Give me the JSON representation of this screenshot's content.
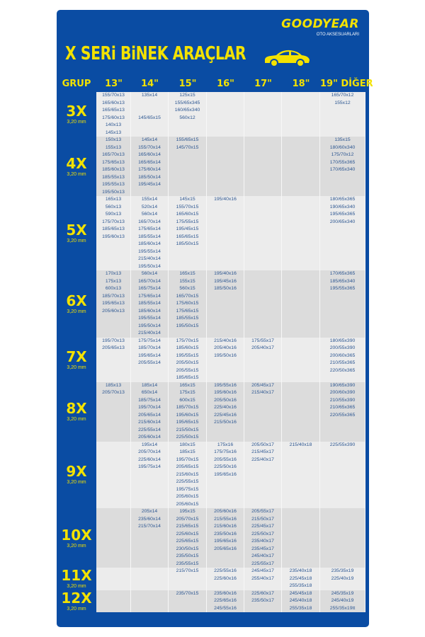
{
  "brand": {
    "logo": "GOODYEAR",
    "subtitle": "OTO AKSESUARLARI"
  },
  "title": "X SERi BiNEK ARAÇLAR",
  "icons": {
    "car": "car-icon"
  },
  "colors": {
    "panel": "#0a4ca3",
    "accent": "#f3e200",
    "text": "#2c5691"
  },
  "headers": [
    "GRUP",
    "13\"",
    "14\"",
    "15\"",
    "16\"",
    "17\"",
    "18\"",
    "19\" DİĞER"
  ],
  "rows": [
    {
      "group": "3X",
      "mm": "3,20 mm",
      "cells": [
        [
          "155/70x13",
          "165/60x13",
          "165/65x13",
          "175/60x13",
          "140x13",
          "145x13"
        ],
        [
          "135x14",
          "",
          "",
          "145/65x15"
        ],
        [
          "125x15",
          "155/65x345",
          "160/65x340",
          "560x12"
        ],
        [],
        [],
        [],
        [
          "165/70x12",
          "155x12"
        ]
      ]
    },
    {
      "group": "4X",
      "mm": "3,20 mm",
      "cells": [
        [
          "150x13",
          "155x13",
          "165/70x13",
          "175/65x13",
          "185/60x13",
          "185/55x13",
          "195/55x13",
          "195/50x13"
        ],
        [
          "145x14",
          "155/70x14",
          "165/60x14",
          "165/65x14",
          "175/60x14",
          "185/50x14",
          "195/45x14"
        ],
        [
          "155/65x15",
          "145/70x15"
        ],
        [],
        [],
        [],
        [
          "135x15",
          "180/60x340",
          "175/70x12",
          "170/55x365",
          "170/65x340"
        ]
      ]
    },
    {
      "group": "5X",
      "mm": "3,20 mm",
      "cells": [
        [
          "165x13",
          "560x13",
          "590x13",
          "175/70x13",
          "185/65x13",
          "195/60x13"
        ],
        [
          "155x14",
          "520x14",
          "560x14",
          "165/70x14",
          "175/65x14",
          "185/55x14",
          "185/60x14",
          "195/55x14",
          "215/40x14",
          "195/50x14"
        ],
        [
          "145x15",
          "155/70x15",
          "165/60x15",
          "175/55x15",
          "195/45x15",
          "165/65x15",
          "185/50x15"
        ],
        [
          "195/40x16"
        ],
        [],
        [],
        [
          "180/65x365",
          "190/65x340",
          "195/65x365",
          "200/65x340"
        ]
      ]
    },
    {
      "group": "6X",
      "mm": "3,20 mm",
      "cells": [
        [
          "170x13",
          "175x13",
          "600x13",
          "185/70x13",
          "195/65x13",
          "205/60x13"
        ],
        [
          "560x14",
          "165/70x14",
          "165/75x14",
          "175/65x14",
          "185/55x14",
          "185/60x14",
          "195/55x14",
          "195/50x14",
          "215/40x14"
        ],
        [
          "165x15",
          "155x15",
          "560x15",
          "165/70x15",
          "175/60x15",
          "175/65x15",
          "185/55x15",
          "195/50x15"
        ],
        [
          "195/40x16",
          "195/45x16",
          "185/50x16"
        ],
        [],
        [],
        [
          "170/65x365",
          "185/65x340",
          "195/55x365"
        ]
      ]
    },
    {
      "group": "7X",
      "mm": "3,20 mm",
      "cells": [
        [
          "195/70x13",
          "205/65x13"
        ],
        [
          "175/75x14",
          "185/70x14",
          "195/65x14",
          "205/55x14"
        ],
        [
          "175/70x15",
          "185/60x15",
          "195/55x15",
          "205/50x15",
          "205/55x15",
          "185/65x15"
        ],
        [
          "215/40x16",
          "205/40x16",
          "195/50x16"
        ],
        [
          "175/55x17",
          "205/40x17"
        ],
        [],
        [
          "180/65x390",
          "200/55x390",
          "200/60x365",
          "210/55x365",
          "220/50x365"
        ]
      ]
    },
    {
      "group": "8X",
      "mm": "3,20 mm",
      "cells": [
        [
          "185x13",
          "205/70x13"
        ],
        [
          "185x14",
          "650x14",
          "185/75x14",
          "195/70x14",
          "205/65x14",
          "215/60x14",
          "225/55x14",
          "205/60x14"
        ],
        [
          "165x15",
          "175x15",
          "600x15",
          "185/70x15",
          "195/60x15",
          "195/65x15",
          "215/50x15",
          "225/50x15"
        ],
        [
          "195/55x16",
          "195/60x16",
          "205/50x16",
          "225/40x16",
          "225/45x16",
          "215/50x16"
        ],
        [
          "205/45x17",
          "215/40x17"
        ],
        [],
        [
          "190/65x390",
          "200/60x390",
          "210/55x390",
          "210/65x365",
          "220/55x365"
        ]
      ]
    },
    {
      "group": "9X",
      "mm": "3,20 mm",
      "cells": [
        [],
        [
          "195x14",
          "205/70x14",
          "225/60x14",
          "195/75x14"
        ],
        [
          "180x15",
          "185x15",
          "195/70x15",
          "205/65x15",
          "215/60x15",
          "225/55x15",
          "195/75x15",
          "205/60x15",
          "205/60x15"
        ],
        [
          "175x16",
          "175/75x16",
          "205/55x16",
          "225/50x16",
          "195/65x16"
        ],
        [
          "205/50x17",
          "215/45x17",
          "225/40x17"
        ],
        [
          "215/40x18"
        ],
        [
          "225/55x390"
        ]
      ]
    },
    {
      "group": "10X",
      "mm": "3,20 mm",
      "cells": [
        [],
        [
          "205x14",
          "235/60x14",
          "215/70x14"
        ],
        [
          "195x15",
          "205/70x15",
          "215/65x15",
          "225/60x15",
          "225/65x15",
          "230/50x15",
          "235/50x15",
          "235/55x15"
        ],
        [
          "205/60x16",
          "215/55x16",
          "215/60x16",
          "235/50x16",
          "195/65x16",
          "205/65x16"
        ],
        [
          "205/55x17",
          "215/50x17",
          "225/45x17",
          "225/50x17",
          "235/40x17",
          "235/45x17",
          "245/40x17",
          "225/55x17"
        ],
        [],
        []
      ]
    },
    {
      "group": "11X",
      "mm": "3,20 mm",
      "cells": [
        [],
        [],
        [
          "215/70x15"
        ],
        [
          "225/55x16",
          "225/60x16"
        ],
        [
          "245/45x17",
          "255/40x17"
        ],
        [
          "235/40x18",
          "225/45x18",
          "255/35x18"
        ],
        [
          "235/35x19",
          "225/40x19"
        ]
      ]
    },
    {
      "group": "12X",
      "mm": "3,20 mm",
      "cells": [
        [],
        [],
        [
          "235/70x15"
        ],
        [
          "235/60x16",
          "225/65x16",
          "245/55x16"
        ],
        [
          "225/60x17",
          "235/50x17"
        ],
        [
          "245/45x18",
          "245/40x18",
          "255/35x18"
        ],
        [
          "245/35x19",
          "245/40x19",
          "255/35x19tt"
        ]
      ]
    }
  ]
}
